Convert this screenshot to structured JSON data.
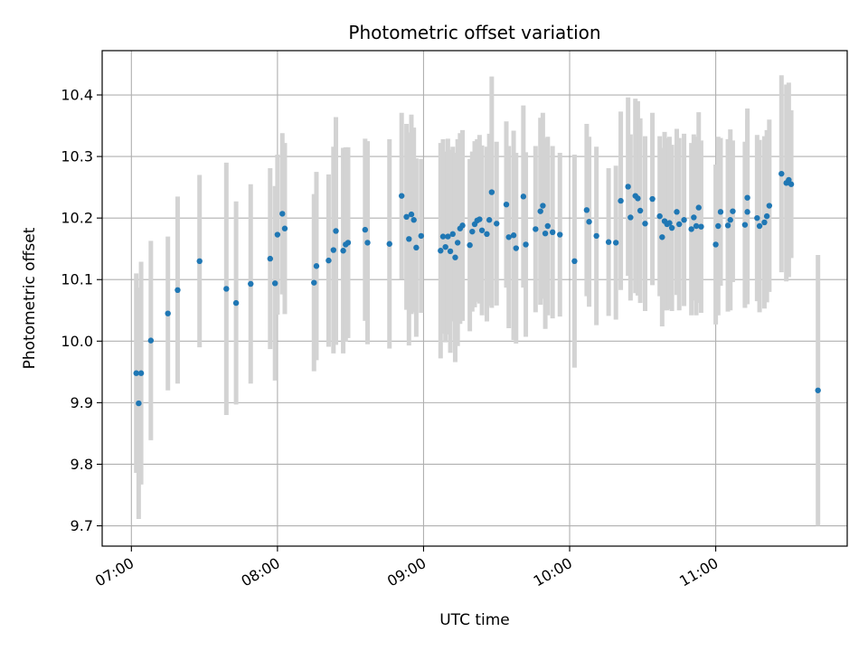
{
  "chart_data": {
    "type": "scatter",
    "title": "Photometric offset variation",
    "xlabel": "UTC time",
    "ylabel": "Photometric offset",
    "x_ticks": [
      "07:00",
      "08:00",
      "09:00",
      "10:00",
      "11:00"
    ],
    "y_ticks": [
      "9.7",
      "9.8",
      "9.9",
      "10.0",
      "10.1",
      "10.2",
      "10.3",
      "10.4"
    ],
    "xlim": [
      "06:48",
      "11:54"
    ],
    "ylim": [
      9.667,
      10.472
    ],
    "grid": true,
    "colors": {
      "points": "#1f77b4",
      "errorbars": "#d3d3d3",
      "grid": "#b0b0b0"
    },
    "points": [
      {
        "t": "07:02",
        "y": 9.948,
        "err": 0.162
      },
      {
        "t": "07:03",
        "y": 9.899,
        "err": 0.188
      },
      {
        "t": "07:04",
        "y": 9.948,
        "err": 0.181
      },
      {
        "t": "07:08",
        "y": 10.001,
        "err": 0.162
      },
      {
        "t": "07:15",
        "y": 10.045,
        "err": 0.125
      },
      {
        "t": "07:19",
        "y": 10.083,
        "err": 0.152
      },
      {
        "t": "07:28",
        "y": 10.13,
        "err": 0.14
      },
      {
        "t": "07:39",
        "y": 10.085,
        "err": 0.205
      },
      {
        "t": "07:43",
        "y": 10.062,
        "err": 0.165
      },
      {
        "t": "07:49",
        "y": 10.093,
        "err": 0.162
      },
      {
        "t": "07:57",
        "y": 10.134,
        "err": 0.147
      },
      {
        "t": "07:59",
        "y": 10.094,
        "err": 0.158
      },
      {
        "t": "08:00",
        "y": 10.173,
        "err": 0.13
      },
      {
        "t": "08:02",
        "y": 10.207,
        "err": 0.131
      },
      {
        "t": "08:03",
        "y": 10.183,
        "err": 0.139
      },
      {
        "t": "08:15",
        "y": 10.095,
        "err": 0.144
      },
      {
        "t": "08:16",
        "y": 10.122,
        "err": 0.153
      },
      {
        "t": "08:21",
        "y": 10.131,
        "err": 0.14
      },
      {
        "t": "08:23",
        "y": 10.148,
        "err": 0.168
      },
      {
        "t": "08:24",
        "y": 10.179,
        "err": 0.185
      },
      {
        "t": "08:27",
        "y": 10.147,
        "err": 0.167
      },
      {
        "t": "08:28",
        "y": 10.157,
        "err": 0.158
      },
      {
        "t": "08:29",
        "y": 10.16,
        "err": 0.155
      },
      {
        "t": "08:36",
        "y": 10.181,
        "err": 0.148
      },
      {
        "t": "08:37",
        "y": 10.16,
        "err": 0.165
      },
      {
        "t": "08:46",
        "y": 10.158,
        "err": 0.17
      },
      {
        "t": "08:51",
        "y": 10.236,
        "err": 0.135
      },
      {
        "t": "08:53",
        "y": 10.202,
        "err": 0.151
      },
      {
        "t": "08:54",
        "y": 10.166,
        "err": 0.173
      },
      {
        "t": "08:55",
        "y": 10.206,
        "err": 0.162
      },
      {
        "t": "08:56",
        "y": 10.197,
        "err": 0.15
      },
      {
        "t": "08:57",
        "y": 10.152,
        "err": 0.145
      },
      {
        "t": "08:59",
        "y": 10.171,
        "err": 0.125
      },
      {
        "t": "09:07",
        "y": 10.147,
        "err": 0.175
      },
      {
        "t": "09:08",
        "y": 10.17,
        "err": 0.158
      },
      {
        "t": "09:09",
        "y": 10.153,
        "err": 0.155
      },
      {
        "t": "09:10",
        "y": 10.17,
        "err": 0.159
      },
      {
        "t": "09:11",
        "y": 10.146,
        "err": 0.165
      },
      {
        "t": "09:12",
        "y": 10.174,
        "err": 0.142
      },
      {
        "t": "09:13",
        "y": 10.136,
        "err": 0.17
      },
      {
        "t": "09:14",
        "y": 10.16,
        "err": 0.168
      },
      {
        "t": "09:15",
        "y": 10.183,
        "err": 0.155
      },
      {
        "t": "09:16",
        "y": 10.188,
        "err": 0.155
      },
      {
        "t": "09:19",
        "y": 10.156,
        "err": 0.14
      },
      {
        "t": "09:20",
        "y": 10.178,
        "err": 0.13
      },
      {
        "t": "09:21",
        "y": 10.19,
        "err": 0.135
      },
      {
        "t": "09:22",
        "y": 10.196,
        "err": 0.132
      },
      {
        "t": "09:23",
        "y": 10.198,
        "err": 0.137
      },
      {
        "t": "09:24",
        "y": 10.18,
        "err": 0.138
      },
      {
        "t": "09:26",
        "y": 10.174,
        "err": 0.142
      },
      {
        "t": "09:27",
        "y": 10.197,
        "err": 0.14
      },
      {
        "t": "09:28",
        "y": 10.242,
        "err": 0.188
      },
      {
        "t": "09:30",
        "y": 10.191,
        "err": 0.133
      },
      {
        "t": "09:34",
        "y": 10.222,
        "err": 0.135
      },
      {
        "t": "09:35",
        "y": 10.169,
        "err": 0.148
      },
      {
        "t": "09:37",
        "y": 10.172,
        "err": 0.17
      },
      {
        "t": "09:38",
        "y": 10.151,
        "err": 0.155
      },
      {
        "t": "09:41",
        "y": 10.235,
        "err": 0.148
      },
      {
        "t": "09:42",
        "y": 10.157,
        "err": 0.15
      },
      {
        "t": "09:46",
        "y": 10.182,
        "err": 0.135
      },
      {
        "t": "09:48",
        "y": 10.211,
        "err": 0.152
      },
      {
        "t": "09:49",
        "y": 10.22,
        "err": 0.151
      },
      {
        "t": "09:50",
        "y": 10.175,
        "err": 0.155
      },
      {
        "t": "09:51",
        "y": 10.187,
        "err": 0.145
      },
      {
        "t": "09:53",
        "y": 10.177,
        "err": 0.14
      },
      {
        "t": "09:56",
        "y": 10.173,
        "err": 0.133
      },
      {
        "t": "10:02",
        "y": 10.13,
        "err": 0.173
      },
      {
        "t": "10:07",
        "y": 10.213,
        "err": 0.14
      },
      {
        "t": "10:08",
        "y": 10.194,
        "err": 0.138
      },
      {
        "t": "10:11",
        "y": 10.171,
        "err": 0.145
      },
      {
        "t": "10:16",
        "y": 10.161,
        "err": 0.12
      },
      {
        "t": "10:19",
        "y": 10.16,
        "err": 0.125
      },
      {
        "t": "10:21",
        "y": 10.228,
        "err": 0.145
      },
      {
        "t": "10:24",
        "y": 10.251,
        "err": 0.145
      },
      {
        "t": "10:25",
        "y": 10.201,
        "err": 0.135
      },
      {
        "t": "10:27",
        "y": 10.236,
        "err": 0.158
      },
      {
        "t": "10:28",
        "y": 10.232,
        "err": 0.158
      },
      {
        "t": "10:29",
        "y": 10.212,
        "err": 0.15
      },
      {
        "t": "10:31",
        "y": 10.191,
        "err": 0.142
      },
      {
        "t": "10:34",
        "y": 10.231,
        "err": 0.14
      },
      {
        "t": "10:37",
        "y": 10.203,
        "err": 0.13
      },
      {
        "t": "10:38",
        "y": 10.169,
        "err": 0.145
      },
      {
        "t": "10:39",
        "y": 10.195,
        "err": 0.145
      },
      {
        "t": "10:40",
        "y": 10.19,
        "err": 0.14
      },
      {
        "t": "10:41",
        "y": 10.192,
        "err": 0.14
      },
      {
        "t": "10:42",
        "y": 10.184,
        "err": 0.135
      },
      {
        "t": "10:44",
        "y": 10.21,
        "err": 0.135
      },
      {
        "t": "10:45",
        "y": 10.19,
        "err": 0.14
      },
      {
        "t": "10:47",
        "y": 10.197,
        "err": 0.14
      },
      {
        "t": "10:50",
        "y": 10.182,
        "err": 0.14
      },
      {
        "t": "10:51",
        "y": 10.201,
        "err": 0.135
      },
      {
        "t": "10:52",
        "y": 10.187,
        "err": 0.145
      },
      {
        "t": "10:53",
        "y": 10.217,
        "err": 0.155
      },
      {
        "t": "10:54",
        "y": 10.186,
        "err": 0.14
      },
      {
        "t": "11:00",
        "y": 10.157,
        "err": 0.13
      },
      {
        "t": "11:01",
        "y": 10.187,
        "err": 0.145
      },
      {
        "t": "11:02",
        "y": 10.21,
        "err": 0.12
      },
      {
        "t": "11:05",
        "y": 10.188,
        "err": 0.14
      },
      {
        "t": "11:06",
        "y": 10.197,
        "err": 0.147
      },
      {
        "t": "11:07",
        "y": 10.211,
        "err": 0.115
      },
      {
        "t": "11:12",
        "y": 10.189,
        "err": 0.135
      },
      {
        "t": "11:13",
        "y": 10.21,
        "err": 0.15
      },
      {
        "t": "11:13",
        "y": 10.233,
        "err": 0.145
      },
      {
        "t": "11:17",
        "y": 10.2,
        "err": 0.135
      },
      {
        "t": "11:18",
        "y": 10.187,
        "err": 0.14
      },
      {
        "t": "11:20",
        "y": 10.193,
        "err": 0.14
      },
      {
        "t": "11:21",
        "y": 10.203,
        "err": 0.14
      },
      {
        "t": "11:22",
        "y": 10.22,
        "err": 0.14
      },
      {
        "t": "11:27",
        "y": 10.272,
        "err": 0.16
      },
      {
        "t": "11:29",
        "y": 10.257,
        "err": 0.16
      },
      {
        "t": "11:30",
        "y": 10.262,
        "err": 0.158
      },
      {
        "t": "11:31",
        "y": 10.255,
        "err": 0.12
      },
      {
        "t": "11:42",
        "y": 9.92,
        "err": 0.22
      }
    ]
  }
}
